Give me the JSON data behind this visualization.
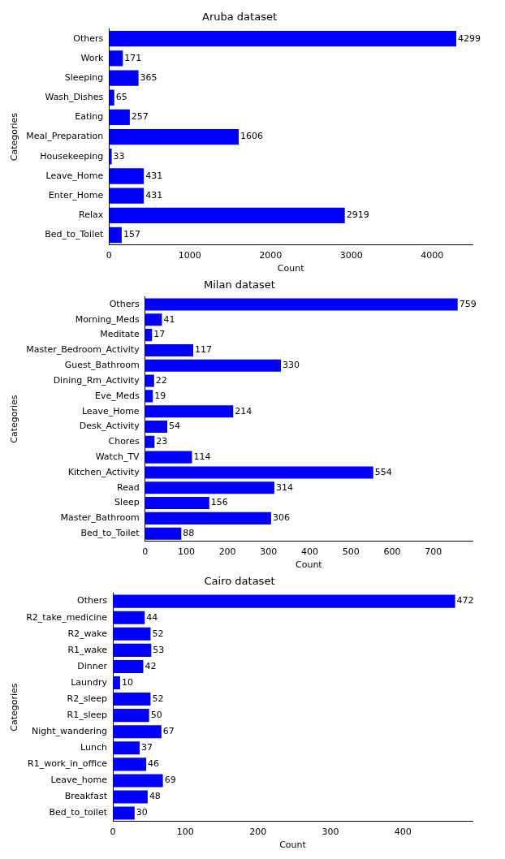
{
  "chart_data": [
    {
      "type": "bar",
      "orientation": "horizontal",
      "title": "Aruba dataset",
      "xlabel": "Count",
      "ylabel": "Categories",
      "categories": [
        "Others",
        "Work",
        "Sleeping",
        "Wash_Dishes",
        "Eating",
        "Meal_Preparation",
        "Housekeeping",
        "Leave_Home",
        "Enter_Home",
        "Relax",
        "Bed_to_Toilet"
      ],
      "values": [
        4299,
        171,
        365,
        65,
        257,
        1606,
        33,
        431,
        431,
        2919,
        157
      ],
      "color": "#0000ff",
      "xlim": [
        0,
        4500
      ],
      "xticks": [
        0,
        1000,
        2000,
        3000,
        4000
      ],
      "grid": false,
      "legend": false,
      "data_labels": true
    },
    {
      "type": "bar",
      "orientation": "horizontal",
      "title": "Milan dataset",
      "xlabel": "Count",
      "ylabel": "Categories",
      "categories": [
        "Others",
        "Morning_Meds",
        "Meditate",
        "Master_Bedroom_Activity",
        "Guest_Bathroom",
        "Dining_Rm_Activity",
        "Eve_Meds",
        "Leave_Home",
        "Desk_Activity",
        "Chores",
        "Watch_TV",
        "Kitchen_Activity",
        "Read",
        "Sleep",
        "Master_Bathroom",
        "Bed_to_Toilet"
      ],
      "values": [
        759,
        41,
        17,
        117,
        330,
        22,
        19,
        214,
        54,
        23,
        114,
        554,
        314,
        156,
        306,
        88
      ],
      "color": "#0000ff",
      "xlim": [
        0,
        795
      ],
      "xticks": [
        0,
        100,
        200,
        300,
        400,
        500,
        600,
        700
      ],
      "grid": false,
      "legend": false,
      "data_labels": true
    },
    {
      "type": "bar",
      "orientation": "horizontal",
      "title": "Cairo dataset",
      "xlabel": "Count",
      "ylabel": "Categories",
      "categories": [
        "Others",
        "R2_take_medicine",
        "R2_wake",
        "R1_wake",
        "Dinner",
        "Laundry",
        "R2_sleep",
        "R1_sleep",
        "Night_wandering",
        "Lunch",
        "R1_work_in_office",
        "Leave_home",
        "Breakfast",
        "Bed_to_toilet"
      ],
      "values": [
        472,
        44,
        52,
        53,
        42,
        10,
        52,
        50,
        67,
        37,
        46,
        69,
        48,
        30
      ],
      "color": "#0000ff",
      "xlim": [
        0,
        496
      ],
      "xticks": [
        0,
        100,
        200,
        300,
        400
      ],
      "grid": false,
      "legend": false,
      "data_labels": true
    }
  ]
}
